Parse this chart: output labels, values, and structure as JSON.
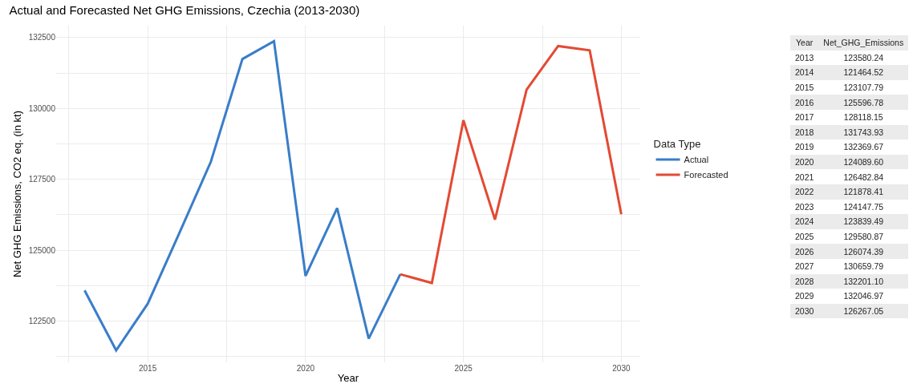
{
  "chart_data": [
    {
      "type": "line",
      "title": "Actual and Forecasted Net GHG Emissions, Czechia (2013-2030)",
      "xlabel": "Year",
      "ylabel": "Net GHG Emissions, CO2 eq. (in kt)",
      "legend_title": "Data Type",
      "legend": "right",
      "grid": true,
      "marker": "none",
      "line_style": "solid",
      "xlim": [
        2012.1,
        2030.6
      ],
      "xticks": [
        {
          "value": 2012.5,
          "label": null
        },
        2015,
        {
          "value": 2017.5,
          "label": null
        },
        2020,
        {
          "value": 2022.5,
          "label": null
        },
        2025,
        {
          "value": 2027.5,
          "label": null
        },
        2030
      ],
      "ylim": [
        121040,
        132920
      ],
      "yticks": [
        {
          "value": 121250,
          "label": null
        },
        122500,
        {
          "value": 123750,
          "label": null
        },
        125000,
        {
          "value": 126250,
          "label": null
        },
        127500,
        {
          "value": 128750,
          "label": null
        },
        130000,
        {
          "value": 131250,
          "label": null
        },
        132500
      ],
      "series": [
        {
          "name": "Actual",
          "color": "#3a7dc9",
          "x": [
            2013,
            2014,
            2015,
            2016,
            2017,
            2018,
            2019,
            2020,
            2021,
            2022,
            2023
          ],
          "values": [
            123580.24,
            121464.52,
            123107.79,
            125596.78,
            128118.15,
            131743.93,
            132369.67,
            124089.6,
            126482.84,
            121878.41,
            124147.75
          ]
        },
        {
          "name": "Forecasted",
          "color": "#e34a33",
          "x": [
            2023,
            2024,
            2025,
            2026,
            2027,
            2028,
            2029,
            2030
          ],
          "values": [
            124147.75,
            123839.49,
            129580.87,
            126074.39,
            130659.79,
            132201.1,
            132046.97,
            126267.05
          ]
        }
      ]
    },
    {
      "type": "heatmap",
      "ylabel": "Year",
      "categories": [
        "Net_GHG_Emissions"
      ],
      "y_categories": [
        "2013",
        "2014",
        "2015",
        "2016",
        "2017",
        "2018",
        "2019",
        "2020",
        "2021",
        "2022",
        "2023",
        "2024",
        "2025",
        "2026",
        "2027",
        "2028",
        "2029",
        "2030"
      ],
      "cells": [
        [
          123580.24
        ],
        [
          121464.52
        ],
        [
          123107.79
        ],
        [
          125596.78
        ],
        [
          128118.15
        ],
        [
          131743.93
        ],
        [
          132369.67
        ],
        [
          124089.6
        ],
        [
          126482.84
        ],
        [
          121878.41
        ],
        [
          124147.75
        ],
        [
          123839.49
        ],
        [
          129580.87
        ],
        [
          126074.39
        ],
        [
          130659.79
        ],
        [
          132201.1
        ],
        [
          132046.97
        ],
        [
          126267.05
        ]
      ],
      "cell_labels": [
        [
          "123580.24"
        ],
        [
          "121464.52"
        ],
        [
          "123107.79"
        ],
        [
          "125596.78"
        ],
        [
          "128118.15"
        ],
        [
          "131743.93"
        ],
        [
          "132369.67"
        ],
        [
          "124089.60"
        ],
        [
          "126482.84"
        ],
        [
          "121878.41"
        ],
        [
          "124147.75"
        ],
        [
          "123839.49"
        ],
        [
          "129580.87"
        ],
        [
          "126074.39"
        ],
        [
          "130659.79"
        ],
        [
          "132201.10"
        ],
        [
          "132046.97"
        ],
        [
          "126267.05"
        ]
      ]
    }
  ]
}
